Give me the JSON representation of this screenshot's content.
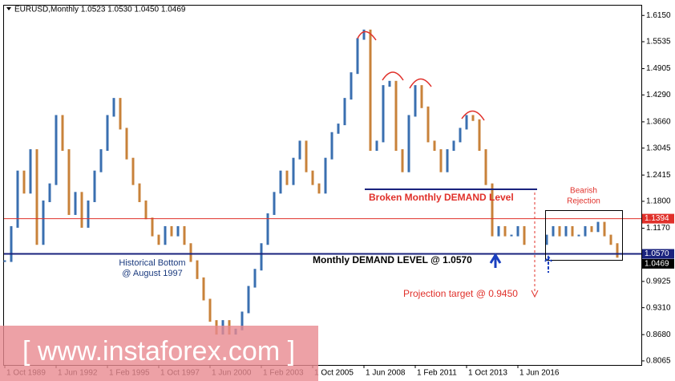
{
  "chart_data": {
    "type": "price-bars",
    "title": "EURUSD,Monthly  1.0523 1.0530 1.0450 1.0469",
    "x": [
      0,
      4,
      8,
      12,
      16,
      20,
      24,
      28,
      32,
      36,
      40,
      44,
      48,
      52,
      56,
      60,
      64,
      68,
      72,
      76,
      80,
      84,
      88,
      92,
      96,
      100,
      104,
      108,
      112,
      116,
      120,
      124,
      128,
      132,
      136,
      140,
      144,
      148,
      152,
      156,
      160,
      164,
      168,
      172,
      176,
      180,
      184,
      188,
      192,
      196,
      200,
      204,
      208,
      212,
      216,
      220,
      224,
      228,
      232,
      236,
      240,
      244,
      248,
      252,
      256,
      260,
      264,
      268,
      272,
      276,
      280,
      284,
      288,
      292,
      296,
      300,
      304,
      308,
      312,
      316,
      320,
      324,
      338,
      342,
      346,
      350,
      354,
      358,
      362,
      366,
      370,
      374,
      378,
      382
    ],
    "series": [
      {
        "name": "EURUSD",
        "color": "#3a6fb0",
        "down_color": "#c8823a",
        "values": [
          1.04,
          1.12,
          1.25,
          1.2,
          1.3,
          1.08,
          1.18,
          1.22,
          1.38,
          1.3,
          1.15,
          1.2,
          1.12,
          1.18,
          1.25,
          1.3,
          1.38,
          1.42,
          1.35,
          1.28,
          1.22,
          1.18,
          1.14,
          1.1,
          1.08,
          1.12,
          1.1,
          1.12,
          1.08,
          1.04,
          1.0,
          0.95,
          0.9,
          0.87,
          0.9,
          0.87,
          0.88,
          0.92,
          0.98,
          1.02,
          1.08,
          1.15,
          1.2,
          1.25,
          1.22,
          1.28,
          1.32,
          1.25,
          1.22,
          1.2,
          1.28,
          1.34,
          1.36,
          1.42,
          1.48,
          1.56,
          1.58,
          1.3,
          1.32,
          1.45,
          1.46,
          1.3,
          1.25,
          1.38,
          1.45,
          1.4,
          1.32,
          1.3,
          1.25,
          1.3,
          1.32,
          1.35,
          1.38,
          1.37,
          1.3,
          1.22,
          1.1,
          1.12,
          1.1,
          1.1,
          1.12,
          1.08,
          1.1,
          1.12,
          1.1,
          1.12,
          1.1,
          1.1,
          1.12,
          1.11,
          1.13,
          1.1,
          1.08,
          1.05
        ]
      }
    ],
    "xlim": [
      -0.5,
      397
    ],
    "xticks": [
      {
        "value": 0,
        "label": "1 Oct 1989"
      },
      {
        "value": 32,
        "label": "1 Jun 1992"
      },
      {
        "value": 64,
        "label": "1 Feb 1995"
      },
      {
        "value": 96,
        "label": "1 Oct 1997"
      },
      {
        "value": 128,
        "label": "1 Jun 2000"
      },
      {
        "value": 160,
        "label": "1 Feb 2003"
      },
      {
        "value": 192,
        "label": "1 Oct 2005"
      },
      {
        "value": 224,
        "label": "1 Jun 2008"
      },
      {
        "value": 256,
        "label": "1 Feb 2011"
      },
      {
        "value": 288,
        "label": "1 Oct 2013"
      },
      {
        "value": 320,
        "label": "1 Jun 2016"
      }
    ],
    "ylim": [
      0.797,
      1.638
    ],
    "yticks": [
      {
        "value": 1.615,
        "label": "1.6150"
      },
      1.5535,
      1.4905,
      {
        "value": 1.429,
        "label": "1.4290"
      },
      {
        "value": 1.366,
        "label": "1.3660"
      },
      1.3045,
      1.2415,
      {
        "value": 1.18,
        "label": "1.1800"
      },
      {
        "value": 1.117,
        "label": "1.1170"
      },
      0.9925,
      {
        "value": 0.931,
        "label": "0.9310"
      },
      {
        "value": 0.868,
        "label": "0.8680"
      },
      0.8065
    ],
    "levels": [
      {
        "value": 1.1394,
        "label": "1.1394",
        "color": "#e0302a"
      },
      {
        "value": 1.057,
        "label": "1.0570",
        "color": "#1a237e"
      },
      {
        "value": 1.0469,
        "label": "1.0469",
        "color": "#000000"
      }
    ],
    "annotations": {
      "broken": "Broken Monthly DEMAND Level",
      "bottom1": "Historical Bottom",
      "bottom2": "@ August 1997",
      "demand": "Monthly DEMAND LEVEL @ 1.0570",
      "target": "Projection target @ 0.9450",
      "bearish1": "Bearish",
      "bearish2": "Rejection",
      "watermark": "[ www.instaforex.com ]"
    }
  }
}
